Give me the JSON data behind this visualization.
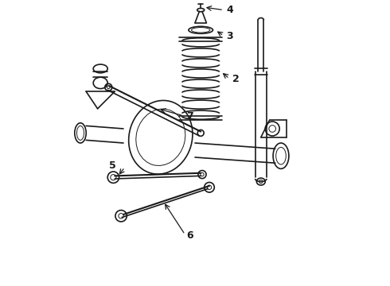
{
  "background_color": "#ffffff",
  "line_color": "#1a1a1a",
  "fig_width": 4.9,
  "fig_height": 3.6,
  "dpi": 100,
  "label_fontsize": 9
}
